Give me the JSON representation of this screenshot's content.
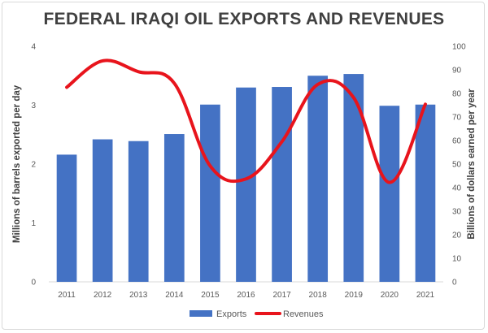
{
  "chart_data": {
    "type": "bar",
    "title": "FEDERAL IRAQI OIL EXPORTS AND REVENUES",
    "categories": [
      "2011",
      "2012",
      "2013",
      "2014",
      "2015",
      "2016",
      "2017",
      "2018",
      "2019",
      "2020",
      "2021"
    ],
    "y_left": {
      "label": "Millions of barrels exported per day",
      "range": [
        0,
        4
      ],
      "ticks": [
        "0",
        "1",
        "2",
        "3",
        "4"
      ]
    },
    "y_right": {
      "label": "Billions of dollars earned per year",
      "range": [
        0,
        100
      ],
      "ticks": [
        "0",
        "10",
        "20",
        "30",
        "40",
        "50",
        "60",
        "70",
        "80",
        "90",
        "100"
      ]
    },
    "series": [
      {
        "name": "Exports",
        "type": "bar",
        "axis": "left",
        "color": "#4472c4",
        "values": [
          2.16,
          2.42,
          2.39,
          2.51,
          3.01,
          3.3,
          3.31,
          3.5,
          3.53,
          2.99,
          3.01
        ]
      },
      {
        "name": "Revenues",
        "type": "line",
        "axis": "right",
        "color": "#e8141c",
        "values": [
          82.6,
          93.8,
          89.2,
          84.3,
          49.2,
          43.7,
          59.5,
          83.8,
          78.2,
          42.2,
          75.4
        ]
      }
    ],
    "grid": false,
    "legend": "bottom"
  }
}
